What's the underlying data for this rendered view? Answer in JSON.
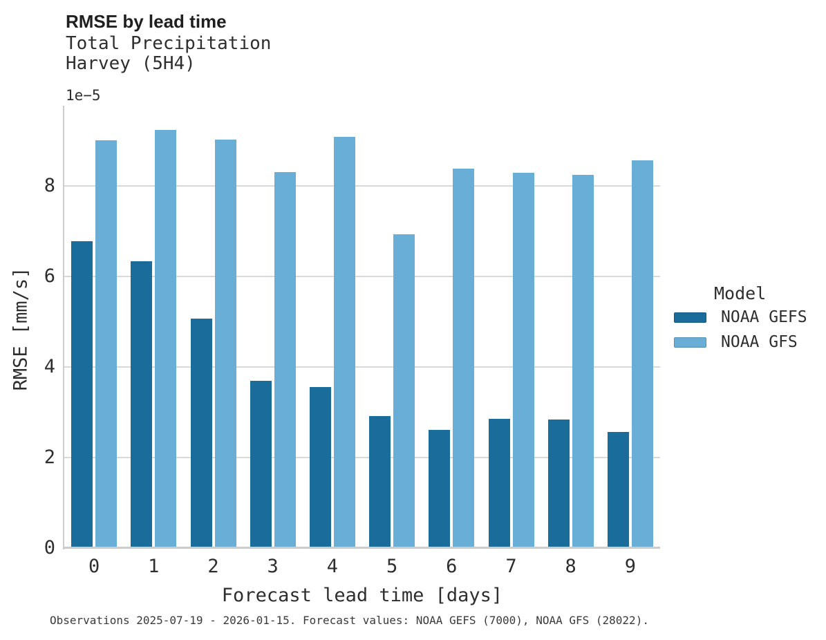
{
  "chart_data": {
    "type": "bar",
    "title": "RMSE by lead time",
    "subtitle_lines": [
      "Total Precipitation",
      "Harvey (5H4)"
    ],
    "y_scale_label": "1e−5",
    "xlabel": "Forecast lead time [days]",
    "ylabel": "RMSE [mm/s]",
    "categories": [
      "0",
      "1",
      "2",
      "3",
      "4",
      "5",
      "6",
      "7",
      "8",
      "9"
    ],
    "series": [
      {
        "name": "NOAA GEFS",
        "color": "#1a6c9b",
        "values": [
          6.78,
          6.34,
          5.07,
          3.7,
          3.55,
          2.92,
          2.61,
          2.86,
          2.84,
          2.56
        ]
      },
      {
        "name": "NOAA GFS",
        "color": "#69aed6",
        "values": [
          9.01,
          9.24,
          9.02,
          8.31,
          9.08,
          6.93,
          8.38,
          8.29,
          8.24,
          8.56
        ]
      }
    ],
    "value_unit_note": "values are in units of 1e-5 mm/s",
    "ylim": [
      0,
      9.77
    ],
    "yticks": [
      0,
      2,
      4,
      6,
      8
    ],
    "grid": "horizontal",
    "legend_title": "Model",
    "legend_position": "right",
    "footer": "Observations 2025-07-19 - 2026-01-15. Forecast values: NOAA GEFS (7000), NOAA GFS (28022)."
  }
}
